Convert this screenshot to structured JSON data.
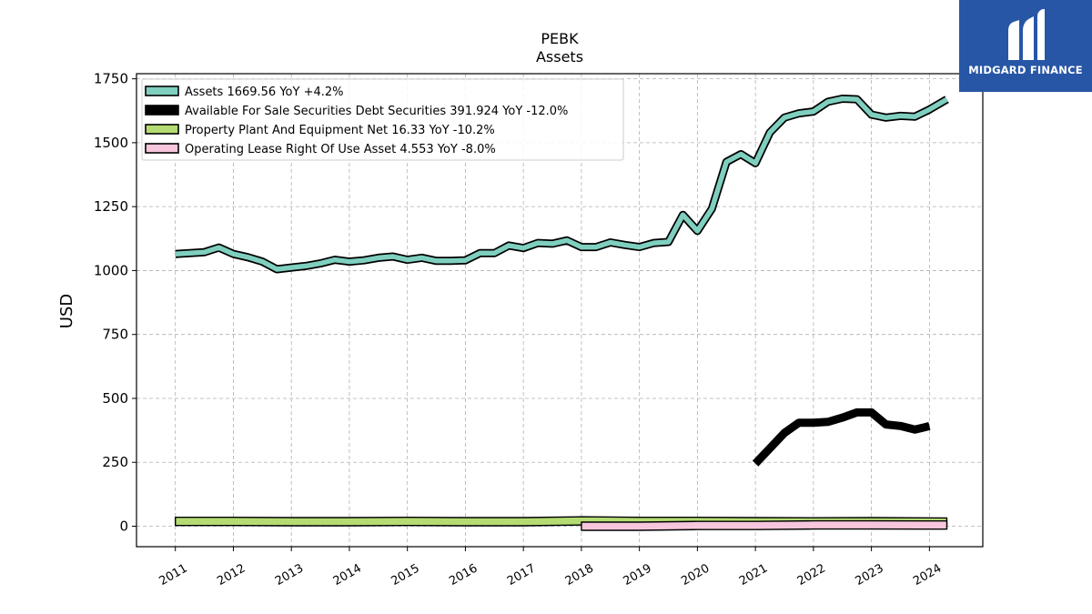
{
  "chart_data": {
    "type": "line",
    "title": "PEBK",
    "subtitle": "Assets",
    "ylabel": "USD",
    "xlabel": "",
    "ylim": [
      -80,
      1770
    ],
    "xlim": [
      2010.33,
      2024.92
    ],
    "yticks": [
      0,
      250,
      500,
      750,
      1000,
      1250,
      1500,
      1750
    ],
    "xticks": [
      "2011",
      "2012",
      "2013",
      "2014",
      "2015",
      "2016",
      "2017",
      "2018",
      "2019",
      "2020",
      "2021",
      "2022",
      "2023",
      "2024"
    ],
    "grid": true,
    "legend_position": "top-left",
    "series": [
      {
        "name": "Assets",
        "legend": "Assets  1669.56 YoY +4.2%",
        "color": "#7fcfbf",
        "x": [
          2011.0,
          2011.25,
          2011.5,
          2011.75,
          2012.0,
          2012.25,
          2012.5,
          2012.75,
          2013.0,
          2013.25,
          2013.5,
          2013.75,
          2014.0,
          2014.25,
          2014.5,
          2014.75,
          2015.0,
          2015.25,
          2015.5,
          2015.75,
          2016.0,
          2016.25,
          2016.5,
          2016.75,
          2017.0,
          2017.25,
          2017.5,
          2017.75,
          2018.0,
          2018.25,
          2018.5,
          2018.75,
          2019.0,
          2019.25,
          2019.5,
          2019.75,
          2020.0,
          2020.25,
          2020.5,
          2020.75,
          2021.0,
          2021.25,
          2021.5,
          2021.75,
          2022.0,
          2022.25,
          2022.5,
          2022.75,
          2023.0,
          2023.25,
          2023.5,
          2023.75,
          2024.0,
          2024.3
        ],
        "y": [
          1065,
          1068,
          1072,
          1090,
          1065,
          1052,
          1035,
          1005,
          1012,
          1018,
          1028,
          1042,
          1035,
          1040,
          1050,
          1055,
          1042,
          1050,
          1038,
          1038,
          1040,
          1068,
          1068,
          1098,
          1088,
          1108,
          1105,
          1118,
          1092,
          1092,
          1110,
          1100,
          1092,
          1108,
          1112,
          1218,
          1155,
          1242,
          1425,
          1455,
          1420,
          1540,
          1598,
          1615,
          1622,
          1660,
          1672,
          1670,
          1610,
          1598,
          1605,
          1602,
          1630,
          1669.56
        ]
      },
      {
        "name": "Available For Sale Securities Debt Securities",
        "legend": "Available For Sale Securities Debt Securities  391.924 YoY -12.0%",
        "color": "#000000",
        "x": [
          2021.0,
          2021.25,
          2021.5,
          2021.75,
          2022.0,
          2022.25,
          2022.5,
          2022.75,
          2023.0,
          2023.25,
          2023.5,
          2023.75,
          2024.0
        ],
        "y": [
          245,
          305,
          365,
          405,
          405,
          408,
          425,
          445,
          445,
          398,
          392,
          378,
          391.924
        ]
      },
      {
        "name": "Property Plant And Equipment Net",
        "legend": "Property Plant And Equipment Net  16.33 YoY -10.2%",
        "color": "#b5dc73",
        "x": [
          2011.0,
          2012.0,
          2013.0,
          2014.0,
          2015.0,
          2016.0,
          2017.0,
          2018.0,
          2019.0,
          2020.0,
          2021.0,
          2022.0,
          2023.0,
          2024.3
        ],
        "y": [
          19,
          19,
          18,
          18,
          19,
          18,
          18,
          21,
          19,
          19,
          18,
          17,
          18,
          16.33
        ]
      },
      {
        "name": "Operating Lease Right Of Use Asset",
        "legend": "Operating Lease Right Of Use Asset  4.553 YoY -8.0%",
        "color": "#f7c6dc",
        "x": [
          2018.0,
          2019.0,
          2020.0,
          2021.0,
          2022.0,
          2023.0,
          2024.3
        ],
        "y": [
          0,
          0,
          3,
          3,
          5,
          5,
          4.553
        ]
      }
    ]
  },
  "logo": {
    "text": "MIDGARD FINANCE"
  }
}
